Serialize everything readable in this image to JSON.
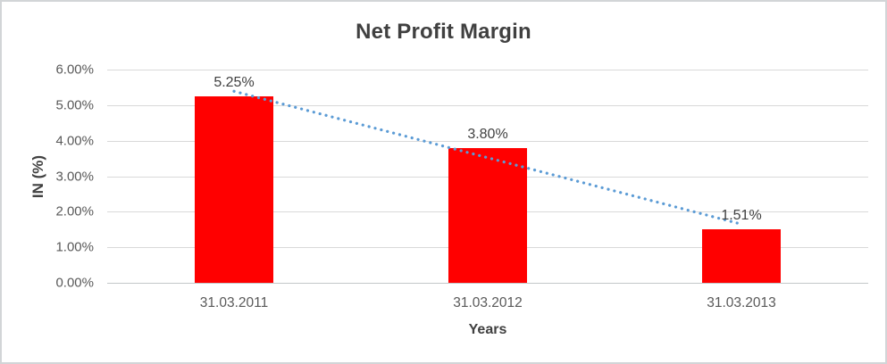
{
  "frame": {
    "background": "#ffffff",
    "border_color": "#d2d5d7"
  },
  "chart_data": {
    "type": "bar",
    "title": "Net Profit Margin",
    "xlabel": "Years",
    "ylabel": "IN (%)",
    "categories": [
      "31.03.2011",
      "31.03.2012",
      "31.03.2013"
    ],
    "values": [
      5.25,
      3.8,
      1.51
    ],
    "data_labels": [
      "5.25%",
      "3.80%",
      "1.51%"
    ],
    "ylim": [
      0,
      6
    ],
    "ytick_labels": [
      "0.00%",
      "1.00%",
      "2.00%",
      "3.00%",
      "4.00%",
      "5.00%",
      "6.00%"
    ],
    "grid": true,
    "legend": "none",
    "bar_color": "#ff0000",
    "title_color": "#404040",
    "label_color": "#404040",
    "axis_text_color": "#595959",
    "gridline_color": "#d9d9d9",
    "axisline_color": "#c3c7c9",
    "trendline": {
      "type": "linear",
      "style": "dotted",
      "color": "#5b9bd5",
      "start_value": 5.39,
      "end_value": 1.65
    }
  }
}
